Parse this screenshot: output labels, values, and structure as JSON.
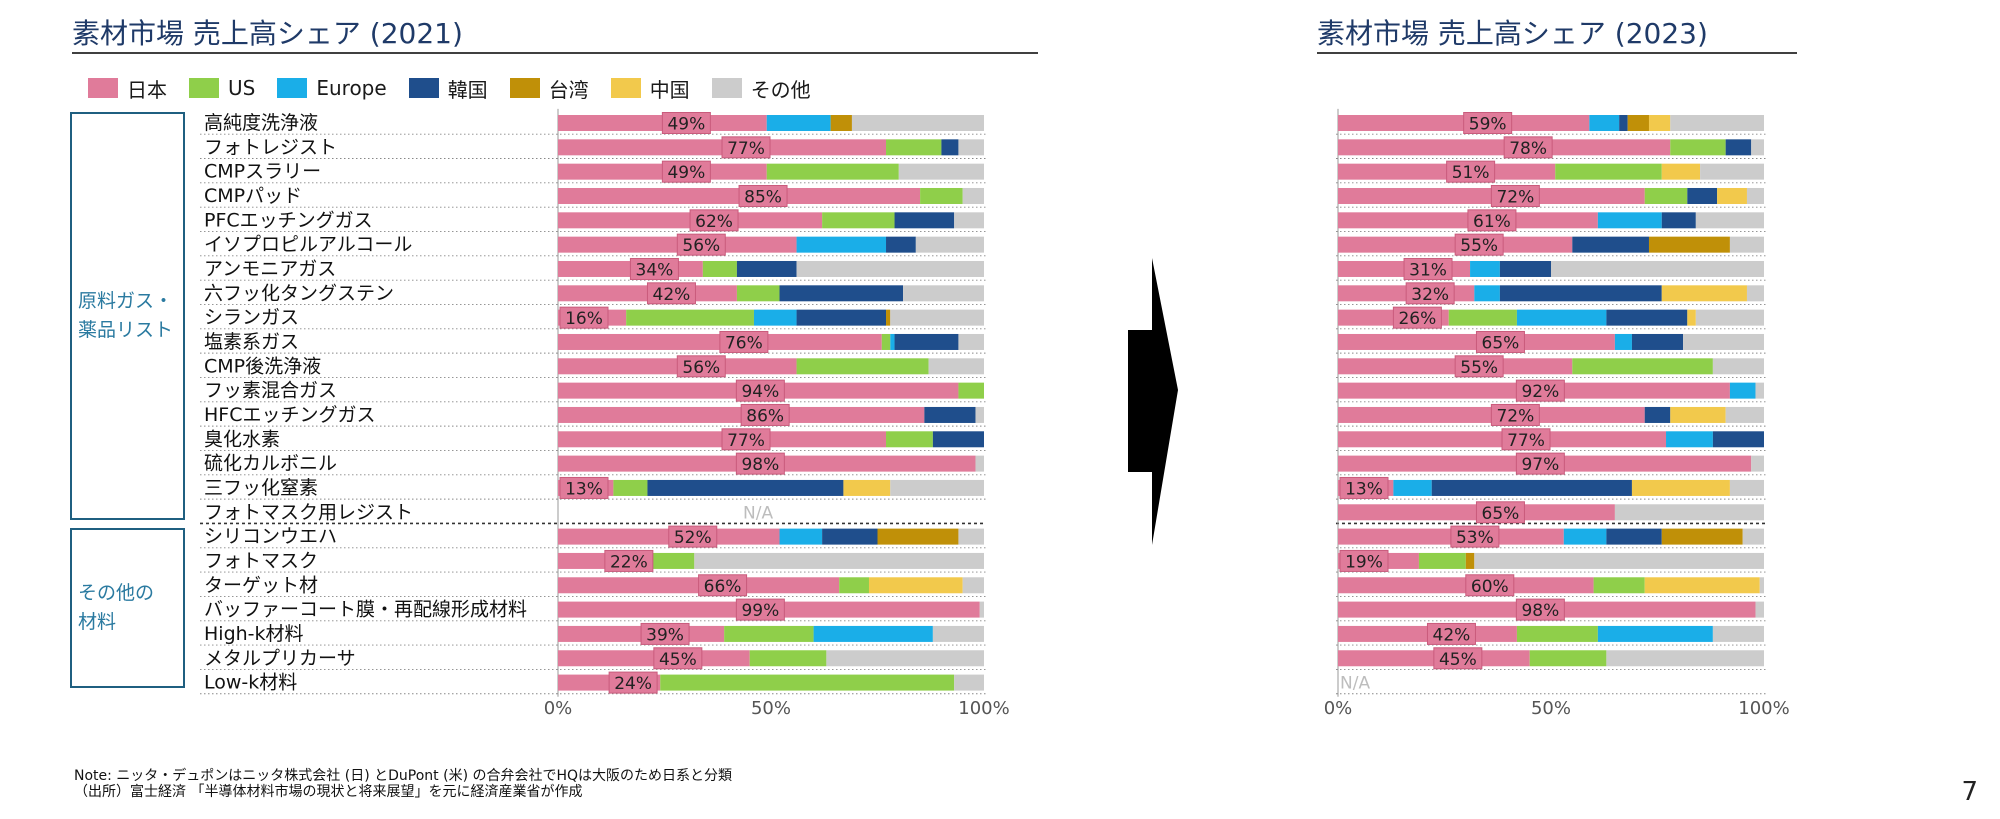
{
  "page_number": "7",
  "notes": [
    "Note: ニッタ・デュポンはニッタ株式会社 (日) とDuPont (米) の合弁会社でHQは大阪のため日系と分類",
    "（出所）富士経済 「半導体材料市場の現状と将来展望」を元に経済産業省が作成"
  ],
  "groups": [
    {
      "label_lines": [
        "原料ガス・",
        "薬品リスト"
      ]
    },
    {
      "label_lines": [
        "その他の",
        "材料"
      ]
    }
  ],
  "colors": {
    "pct_box_border": "#c95b7c",
    "arrow": "#000000",
    "na_text": "#bdbdbd"
  },
  "chart_data": [
    {
      "type": "bar",
      "orientation": "horizontal",
      "stacked": true,
      "title": "素材市場 売上高シェア (2021)",
      "x_ticks": [
        "0%",
        "50%",
        "100%"
      ],
      "xlim": [
        0,
        100
      ],
      "legend": [
        {
          "name": "日本",
          "color": "#e07b9a"
        },
        {
          "name": "US",
          "color": "#8fcf4a"
        },
        {
          "name": "Europe",
          "color": "#1aaee8"
        },
        {
          "name": "韓国",
          "color": "#1f4e8c"
        },
        {
          "name": "台湾",
          "color": "#c09008"
        },
        {
          "name": "中国",
          "color": "#f2c94c"
        },
        {
          "name": "その他",
          "color": "#cccccc"
        }
      ],
      "categories": [
        "高純度洗浄液",
        "フォトレジスト",
        "CMPスラリー",
        "CMPパッド",
        "PFCエッチングガス",
        "イソプロピルアルコール",
        "アンモニアガス",
        "六フッ化タングステン",
        "シランガス",
        "塩素系ガス",
        "CMP後洗浄液",
        "フッ素混合ガス",
        "HFCエッチングガス",
        "臭化水素",
        "硫化カルボニル",
        "三フッ化窒素",
        "フォトマスク用レジスト",
        "シリコンウエハ",
        "フォトマスク",
        "ターゲット材",
        "バッファーコート膜・再配線形成材料",
        "High-k材料",
        "メタルプリカーサ",
        "Low-k材料"
      ],
      "group_of_category": [
        0,
        0,
        0,
        0,
        0,
        0,
        0,
        0,
        0,
        0,
        0,
        0,
        0,
        0,
        0,
        0,
        0,
        1,
        1,
        1,
        1,
        1,
        1,
        1
      ],
      "series": [
        {
          "name": "日本",
          "values": [
            49,
            77,
            49,
            85,
            62,
            56,
            34,
            42,
            16,
            76,
            56,
            94,
            86,
            77,
            98,
            13,
            null,
            52,
            22,
            66,
            99,
            39,
            45,
            24
          ]
        },
        {
          "name": "US",
          "values": [
            0,
            13,
            31,
            10,
            17,
            0,
            8,
            10,
            30,
            2,
            31,
            6,
            0,
            11,
            0,
            8,
            null,
            0,
            10,
            7,
            0,
            21,
            18,
            69
          ]
        },
        {
          "name": "Europe",
          "values": [
            15,
            0,
            0,
            0,
            0,
            21,
            0,
            0,
            10,
            1,
            0,
            0,
            0,
            0,
            0,
            0,
            null,
            10,
            0,
            0,
            0,
            28,
            0,
            0
          ]
        },
        {
          "name": "韓国",
          "values": [
            0,
            4,
            0,
            0,
            14,
            7,
            14,
            29,
            21,
            15,
            0,
            0,
            12,
            12,
            0,
            46,
            null,
            13,
            0,
            0,
            0,
            0,
            0,
            0
          ]
        },
        {
          "name": "台湾",
          "values": [
            5,
            0,
            0,
            0,
            0,
            0,
            0,
            0,
            1,
            0,
            0,
            0,
            0,
            0,
            0,
            0,
            null,
            19,
            0,
            0,
            0,
            0,
            0,
            0
          ]
        },
        {
          "name": "中国",
          "values": [
            0,
            0,
            0,
            0,
            0,
            0,
            0,
            0,
            0,
            0,
            0,
            0,
            0,
            0,
            0,
            11,
            null,
            0,
            0,
            22,
            0,
            0,
            0,
            0
          ]
        },
        {
          "name": "その他",
          "values": [
            31,
            6,
            20,
            5,
            7,
            16,
            44,
            19,
            22,
            6,
            13,
            0,
            2,
            0,
            2,
            22,
            null,
            6,
            68,
            5,
            1,
            12,
            37,
            7
          ]
        }
      ],
      "labels": [
        "49%",
        "77%",
        "49%",
        "85%",
        "62%",
        "56%",
        "34%",
        "42%",
        "16%",
        "76%",
        "56%",
        "94%",
        "86%",
        "77%",
        "98%",
        "13%",
        "N/A",
        "52%",
        "22%",
        "66%",
        "99%",
        "39%",
        "45%",
        "24%"
      ]
    },
    {
      "type": "bar",
      "orientation": "horizontal",
      "stacked": true,
      "title": "素材市場 売上高シェア (2023)",
      "x_ticks": [
        "0%",
        "50%",
        "100%"
      ],
      "xlim": [
        0,
        100
      ],
      "categories": [
        "高純度洗浄液",
        "フォトレジスト",
        "CMPスラリー",
        "CMPパッド",
        "PFCエッチングガス",
        "イソプロピルアルコール",
        "アンモニアガス",
        "六フッ化タングステン",
        "シランガス",
        "塩素系ガス",
        "CMP後洗浄液",
        "フッ素混合ガス",
        "HFCエッチングガス",
        "臭化水素",
        "硫化カルボニル",
        "三フッ化窒素",
        "フォトマスク用レジスト",
        "シリコンウエハ",
        "フォトマスク",
        "ターゲット材",
        "バッファーコート膜・再配線形成材料",
        "High-k材料",
        "メタルプリカーサ",
        "Low-k材料"
      ],
      "series": [
        {
          "name": "日本",
          "values": [
            59,
            78,
            51,
            72,
            61,
            55,
            31,
            32,
            26,
            65,
            55,
            92,
            72,
            77,
            97,
            13,
            65,
            53,
            19,
            60,
            98,
            42,
            45,
            null
          ]
        },
        {
          "name": "US",
          "values": [
            0,
            13,
            25,
            10,
            0,
            0,
            0,
            0,
            16,
            0,
            33,
            0,
            0,
            0,
            0,
            0,
            0,
            0,
            11,
            12,
            0,
            19,
            18,
            null
          ]
        },
        {
          "name": "Europe",
          "values": [
            7,
            0,
            0,
            0,
            15,
            0,
            7,
            6,
            21,
            4,
            0,
            6,
            0,
            11,
            0,
            9,
            0,
            10,
            0,
            0,
            0,
            27,
            0,
            null
          ]
        },
        {
          "name": "韓国",
          "values": [
            2,
            6,
            0,
            7,
            8,
            18,
            12,
            38,
            19,
            12,
            0,
            0,
            6,
            12,
            0,
            47,
            0,
            13,
            0,
            0,
            0,
            0,
            0,
            null
          ]
        },
        {
          "name": "台湾",
          "values": [
            5,
            0,
            0,
            0,
            0,
            19,
            0,
            0,
            0,
            0,
            0,
            0,
            0,
            0,
            0,
            0,
            0,
            19,
            2,
            0,
            0,
            0,
            0,
            null
          ]
        },
        {
          "name": "中国",
          "values": [
            5,
            0,
            9,
            7,
            0,
            0,
            0,
            20,
            2,
            0,
            0,
            0,
            13,
            0,
            0,
            23,
            0,
            0,
            0,
            27,
            0,
            0,
            0,
            null
          ]
        },
        {
          "name": "その他",
          "values": [
            22,
            3,
            15,
            4,
            16,
            8,
            50,
            4,
            16,
            19,
            12,
            2,
            9,
            0,
            3,
            8,
            35,
            5,
            68,
            1,
            2,
            12,
            37,
            null
          ]
        }
      ],
      "labels": [
        "59%",
        "78%",
        "51%",
        "72%",
        "61%",
        "55%",
        "31%",
        "32%",
        "26%",
        "65%",
        "55%",
        "92%",
        "72%",
        "77%",
        "97%",
        "13%",
        "65%",
        "53%",
        "19%",
        "60%",
        "98%",
        "42%",
        "45%",
        "N/A"
      ]
    }
  ]
}
